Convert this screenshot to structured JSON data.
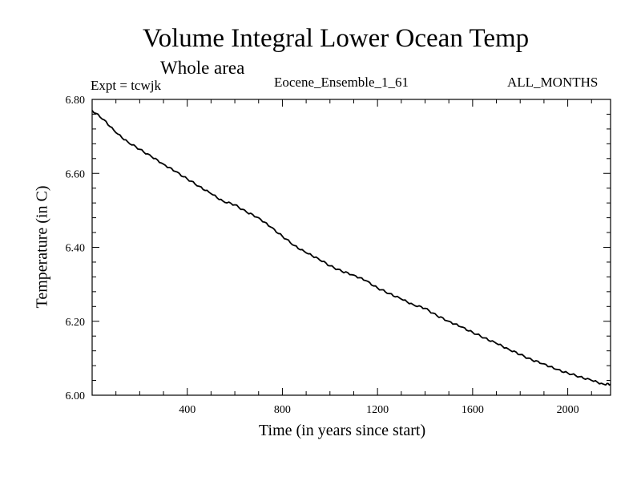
{
  "header": {
    "title": "Volume Integral Lower Ocean Temp",
    "subtitle": "Whole area",
    "expt": "Expt = tcwjk",
    "ensemble": "Eocene_Ensemble_1_61",
    "months": "ALL_MONTHS"
  },
  "chart_data": {
    "type": "line",
    "xlabel": "Time (in years since start)",
    "ylabel": "Temperature (in C)",
    "xlim": [
      0,
      2180
    ],
    "ylim": [
      6.0,
      6.8
    ],
    "x_ticks": [
      400,
      800,
      1200,
      1600,
      2000
    ],
    "x_tick_labels": [
      "400",
      "800",
      "1200",
      "1600",
      "2000"
    ],
    "y_ticks": [
      6.0,
      6.2,
      6.4,
      6.6,
      6.8
    ],
    "y_tick_labels": [
      "6.00",
      "6.20",
      "6.40",
      "6.60",
      "6.80"
    ],
    "grid": false,
    "series": [
      {
        "line_color": "#000000",
        "x": [
          0,
          50,
          100,
          150,
          200,
          250,
          300,
          350,
          400,
          450,
          500,
          550,
          600,
          650,
          700,
          750,
          800,
          850,
          900,
          950,
          1000,
          1050,
          1100,
          1150,
          1200,
          1250,
          1300,
          1350,
          1400,
          1450,
          1500,
          1550,
          1600,
          1650,
          1700,
          1750,
          1800,
          1850,
          1900,
          1950,
          2000,
          2050,
          2100,
          2150,
          2180
        ],
        "y": [
          6.77,
          6.745,
          6.71,
          6.685,
          6.665,
          6.645,
          6.625,
          6.605,
          6.585,
          6.565,
          6.545,
          6.525,
          6.515,
          6.495,
          6.48,
          6.455,
          6.43,
          6.405,
          6.385,
          6.37,
          6.35,
          6.335,
          6.325,
          6.31,
          6.29,
          6.275,
          6.26,
          6.245,
          6.235,
          6.215,
          6.2,
          6.185,
          6.17,
          6.155,
          6.14,
          6.125,
          6.11,
          6.095,
          6.085,
          6.07,
          6.06,
          6.05,
          6.04,
          6.03,
          6.03
        ]
      }
    ]
  }
}
